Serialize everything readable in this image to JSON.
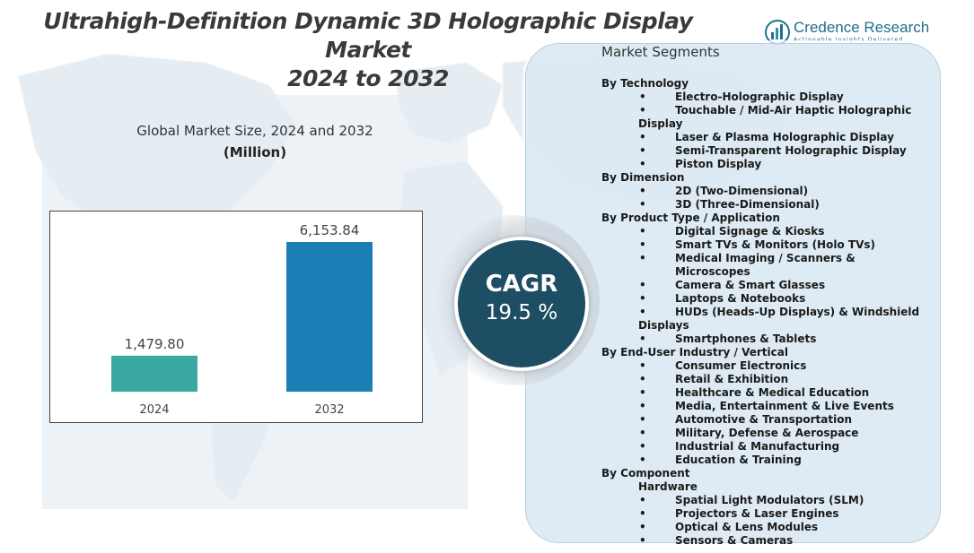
{
  "title": {
    "line1": "Ultrahigh-Definition Dynamic 3D Holographic Display",
    "line2": "Market",
    "line3": "2024 to 2032"
  },
  "logo": {
    "name": "Credence Research",
    "tagline": "Actionable Insights Delivered",
    "icon": "bar-chart-logo-icon"
  },
  "chart_title": "Global Market Size, 2024 and 2032",
  "chart_unit": "(Million)",
  "chart_data": {
    "type": "bar",
    "categories": [
      "2024",
      "2032"
    ],
    "values": [
      1479.8,
      6153.84
    ],
    "value_labels": [
      "1,479.80",
      "6,153.84"
    ],
    "colors": [
      "#3aa9a3",
      "#1a7fb5"
    ],
    "grid": false,
    "legend": "none"
  },
  "cagr": {
    "label": "CAGR",
    "value": "19.5 %"
  },
  "segments": {
    "title": "Market Segments",
    "technology": {
      "heading": "By Technology",
      "items": [
        "Electro-Holographic Display",
        "Laser & Plasma Holographic Display",
        "Semi-Transparent Holographic Display",
        "Piston Display"
      ],
      "wrap_item_a": "Touchable / Mid-Air Haptic Holographic",
      "wrap_item_b": "Display"
    },
    "dimension": {
      "heading": "By Dimension",
      "items": [
        "2D (Two-Dimensional)",
        "3D (Three-Dimensional)"
      ]
    },
    "product": {
      "heading": "By Product Type / Application",
      "items": [
        "Digital Signage & Kiosks",
        "Smart TVs & Monitors (Holo TVs)",
        "Medical Imaging / Scanners & Microscopes",
        "Camera & Smart Glasses",
        "Laptops & Notebooks"
      ],
      "wrap_item_a": "HUDs (Heads-Up Displays) & Windshield",
      "wrap_item_b": "Displays",
      "last_item": "Smartphones & Tablets"
    },
    "enduser": {
      "heading": "By End-User Industry / Vertical",
      "items": [
        "Consumer Electronics",
        "Retail & Exhibition",
        "Healthcare & Medical Education",
        "Media, Entertainment & Live Events",
        "Automotive & Transportation",
        "Military, Defense & Aerospace",
        "Industrial & Manufacturing",
        "Education & Training"
      ]
    },
    "component": {
      "heading": "By Component",
      "subheading": "Hardware",
      "items": [
        "Spatial Light Modulators (SLM)",
        "Projectors & Laser Engines",
        "Optical & Lens Modules",
        "Sensors & Cameras"
      ]
    },
    "bullet": "•"
  }
}
